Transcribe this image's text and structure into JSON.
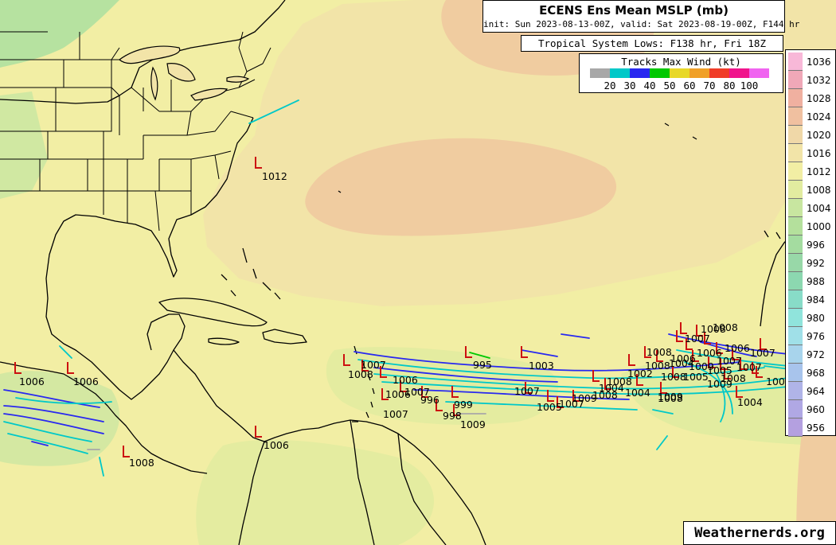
{
  "header": {
    "title": "ECENS Ens Mean MSLP (mb)",
    "subtitle": "init: Sun 2023-08-13-00Z, valid: Sat 2023-08-19-00Z, F144 hr"
  },
  "lows_header": "Tropical System Lows: F138 hr, Fri 18Z",
  "tracks_legend": {
    "title": "Tracks Max Wind (kt)",
    "colors": [
      "#a8a8a8",
      "#00c8c8",
      "#2828f0",
      "#00c800",
      "#e8d828",
      "#f0a028",
      "#f03c28",
      "#f0148c",
      "#f064f0"
    ],
    "labels": [
      "20",
      "30",
      "40",
      "50",
      "60",
      "70",
      "80",
      "100"
    ]
  },
  "pressure_scale": {
    "labels": [
      "1036",
      "1032",
      "1028",
      "1024",
      "1020",
      "1016",
      "1012",
      "1008",
      "1004",
      "1000",
      "996",
      "992",
      "988",
      "984",
      "980",
      "976",
      "972",
      "968",
      "964",
      "960",
      "956"
    ],
    "colors": [
      "#f8b8d8",
      "#f0a8b8",
      "#f0b0a0",
      "#f0c0a0",
      "#f0d8a8",
      "#f2e4a8",
      "#f2eea4",
      "#e2eca0",
      "#c8e6a0",
      "#b4e09c",
      "#a4dca0",
      "#98d8a8",
      "#8cd8b0",
      "#88dcc8",
      "#90e4dc",
      "#a0e0e8",
      "#a8d4ec",
      "#a8c4ec",
      "#b0b4e8",
      "#b0a8e4",
      "#b4a0e0"
    ]
  },
  "low_labels": [
    "1012",
    "1006",
    "1006",
    "1006",
    "1008",
    "1007",
    "1008",
    "1006",
    "1007",
    "1006",
    "1007",
    "996",
    "999",
    "998",
    "1009",
    "995",
    "1003",
    "1007",
    "1005",
    "1007",
    "1009",
    "1008",
    "1004",
    "1002",
    "1008",
    "1004",
    "1009",
    "1008",
    "1008",
    "1008",
    "1004",
    "1007",
    "1008",
    "1008",
    "1008",
    "1005",
    "1006",
    "1009",
    "1005",
    "1007",
    "1006",
    "1007",
    "1009",
    "100",
    "1006",
    "1004",
    "1007",
    "1008"
  ],
  "credit": "Weathernerds.org"
}
